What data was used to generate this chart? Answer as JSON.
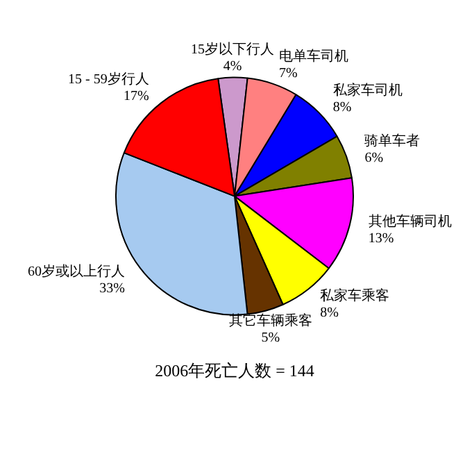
{
  "chart_data": {
    "type": "pie",
    "title": "2006年死亡人数 = 144",
    "categories": [
      "15岁以下行人",
      "电单车司机",
      "私家车司机",
      "骑单车者",
      "其他车辆司机",
      "私家车乘客",
      "其它车辆乘客",
      "60岁或以上行人",
      "15 - 59岁行人"
    ],
    "values": [
      4,
      7,
      8,
      6,
      13,
      8,
      5,
      33,
      17
    ],
    "value_labels": [
      "4%",
      "7%",
      "8%",
      "6%",
      "13%",
      "8%",
      "5%",
      "33%",
      "17%"
    ],
    "colors": [
      "#cc99cc",
      "#ff8080",
      "#0000ff",
      "#808000",
      "#ff00ff",
      "#ffff00",
      "#663300",
      "#a6caf0",
      "#ff0000"
    ],
    "legend": false
  }
}
